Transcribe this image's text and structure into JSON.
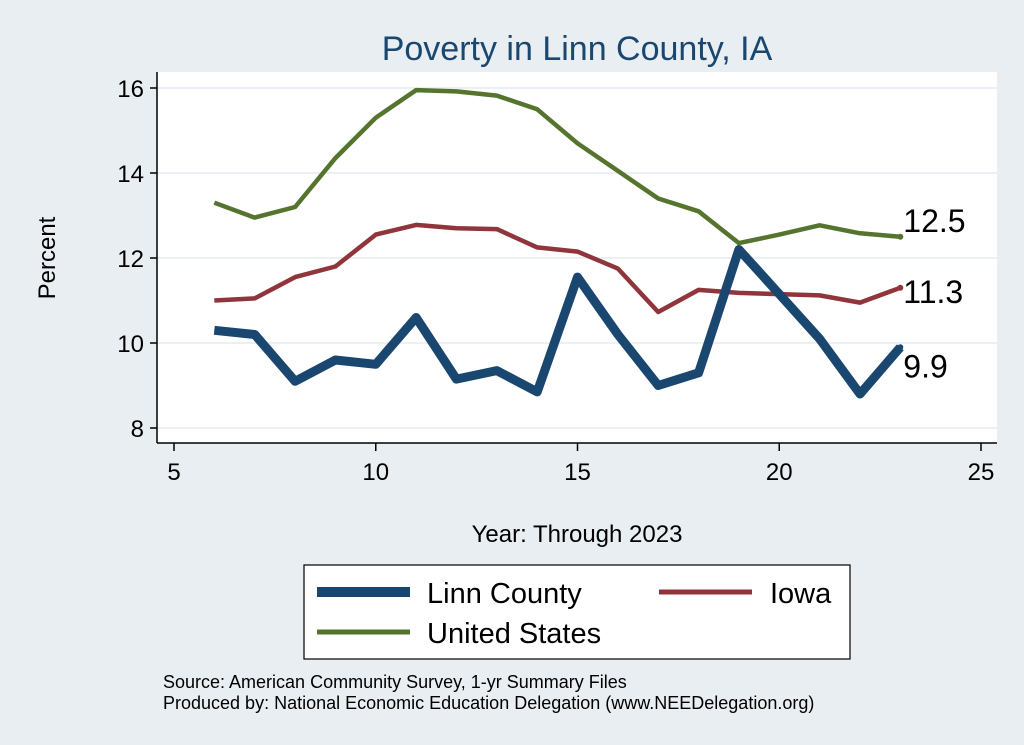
{
  "chart_data": {
    "type": "line",
    "title": "Poverty in Linn County, IA",
    "xlabel": "Year: Through 2023",
    "ylabel": "Percent",
    "xlim": [
      5,
      25
    ],
    "ylim": [
      7.7,
      16.4
    ],
    "xticks": [
      5,
      10,
      15,
      20,
      25
    ],
    "yticks": [
      8,
      10,
      12,
      14,
      16
    ],
    "grid": "horizontal",
    "legend_position": "bottom",
    "series": [
      {
        "name": "Linn County",
        "color": "#1a476f",
        "line_width": "thick",
        "x": [
          6,
          7,
          8,
          9,
          10,
          11,
          12,
          13,
          14,
          15,
          16,
          17,
          18,
          19,
          20,
          21,
          22,
          23
        ],
        "values": [
          10.3,
          10.2,
          9.1,
          9.6,
          9.5,
          10.6,
          9.15,
          9.35,
          8.85,
          11.55,
          10.2,
          9.0,
          9.3,
          12.2,
          11.15,
          10.1,
          8.8,
          9.9
        ],
        "end_label": "9.9"
      },
      {
        "name": "Iowa",
        "color": "#90353b",
        "line_width": "medium",
        "x": [
          6,
          7,
          8,
          9,
          10,
          11,
          12,
          13,
          14,
          15,
          16,
          17,
          18,
          19,
          20,
          21,
          22,
          23
        ],
        "values": [
          11.0,
          11.05,
          11.55,
          11.8,
          12.55,
          12.78,
          12.7,
          12.68,
          12.25,
          12.15,
          11.75,
          10.73,
          11.25,
          11.18,
          11.15,
          11.12,
          10.95,
          11.3
        ],
        "end_label": "11.3"
      },
      {
        "name": "United States",
        "color": "#55752f",
        "line_width": "medium",
        "x": [
          6,
          7,
          8,
          9,
          10,
          11,
          12,
          13,
          14,
          15,
          16,
          17,
          18,
          19,
          20,
          21,
          22,
          23
        ],
        "values": [
          13.3,
          12.95,
          13.2,
          14.35,
          15.3,
          15.95,
          15.92,
          15.82,
          15.5,
          14.7,
          14.05,
          13.4,
          13.1,
          12.35,
          12.55,
          12.77,
          12.58,
          12.5
        ],
        "end_label": "12.5"
      }
    ],
    "legend": {
      "items": [
        "Linn County",
        "Iowa",
        "United States"
      ]
    },
    "notes": [
      "Source: American Community Survey, 1-yr Summary Files",
      "Produced by: National Economic Education Delegation (www.NEEDelegation.org)"
    ]
  }
}
